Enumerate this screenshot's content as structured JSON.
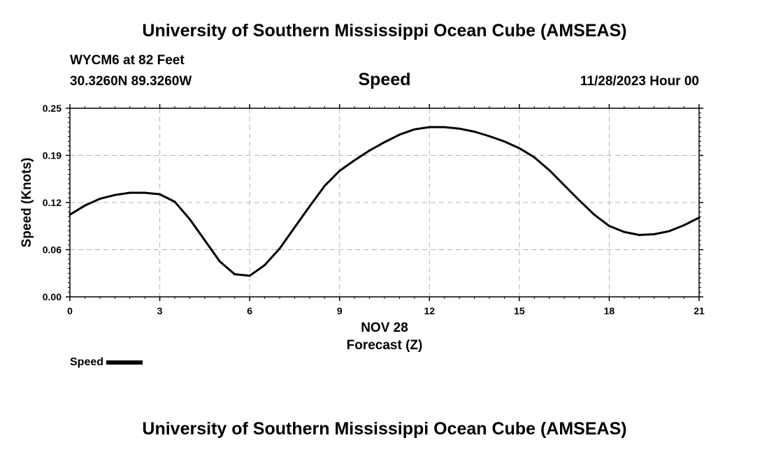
{
  "header": {
    "title": "University of Southern Mississippi Ocean Cube (AMSEAS)",
    "station": "WYCM6 at 82 Feet",
    "coords": "30.3260N  89.3260W",
    "variable": "Speed",
    "datetime": "11/28/2023 Hour 00"
  },
  "footer": {
    "title": "University of Southern Mississippi Ocean Cube (AMSEAS)"
  },
  "legend": {
    "label": "Speed",
    "color": "#000000"
  },
  "chart_data": {
    "type": "line",
    "title": "Speed",
    "xlabel": "Forecast (Z)",
    "xsublabel": "NOV 28",
    "ylabel": "Speed (Knots)",
    "xlim": [
      0,
      21
    ],
    "ylim": [
      0,
      0.25
    ],
    "xticks": [
      0,
      3,
      6,
      9,
      12,
      15,
      18,
      21
    ],
    "xtick_labels": [
      "0",
      "3",
      "6",
      "9",
      "12",
      "15",
      "18",
      "21"
    ],
    "yticks": [
      0,
      0.0625,
      0.125,
      0.1875,
      0.25
    ],
    "ytick_labels": [
      "0.00",
      "0.06",
      "0.12",
      "0.19",
      "0.25"
    ],
    "grid": true,
    "series": [
      {
        "name": "Speed",
        "color": "#000000",
        "x": [
          0,
          0.5,
          1,
          1.5,
          2,
          2.5,
          3,
          3.5,
          4,
          4.5,
          5,
          5.5,
          6,
          6.5,
          7,
          7.5,
          8,
          8.5,
          9,
          9.5,
          10,
          10.5,
          11,
          11.5,
          12,
          12.5,
          13,
          13.5,
          14,
          14.5,
          15,
          15.5,
          16,
          16.5,
          17,
          17.5,
          18,
          18.5,
          19,
          19.5,
          20,
          20.5,
          21
        ],
        "values": [
          0.109,
          0.121,
          0.13,
          0.135,
          0.138,
          0.138,
          0.136,
          0.126,
          0.103,
          0.075,
          0.047,
          0.03,
          0.028,
          0.042,
          0.064,
          0.092,
          0.12,
          0.147,
          0.167,
          0.181,
          0.194,
          0.205,
          0.215,
          0.222,
          0.225,
          0.225,
          0.223,
          0.219,
          0.213,
          0.206,
          0.197,
          0.185,
          0.168,
          0.148,
          0.128,
          0.109,
          0.094,
          0.086,
          0.082,
          0.083,
          0.087,
          0.095,
          0.105
        ]
      }
    ]
  }
}
